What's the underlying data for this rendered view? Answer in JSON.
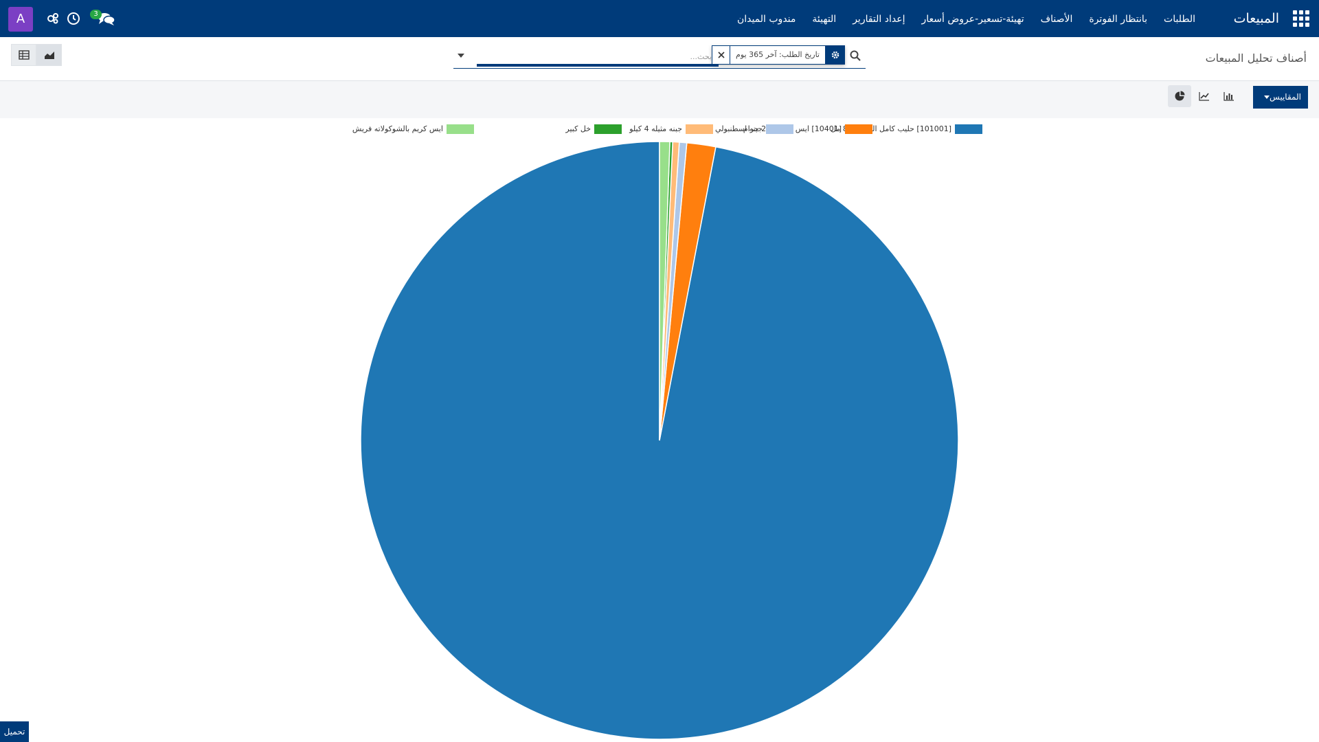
{
  "navbar": {
    "brand": "المبيعات",
    "menu": [
      "الطلبات",
      "بانتظار الفوترة",
      "الأصناف",
      "تهيئة-تسعير-عروض أسعار",
      "إعداد التقارير",
      "التهيئة",
      "مندوب الميدان"
    ],
    "avatar_letter": "A",
    "messages_count": "3",
    "colors": {
      "bar": "#003b7a",
      "avatar": "#7b3fc4",
      "badge": "#28a745"
    }
  },
  "control_panel": {
    "breadcrumb": "أصناف تحليل المبيعات",
    "facet_value": "تاريخ الطلب: آخر 365 يوم",
    "search_placeholder": "بحث..."
  },
  "graph_controls": {
    "measures_label": "المقاييس",
    "chart_types": [
      "pie-chart-icon",
      "line-chart-icon",
      "bar-chart-icon"
    ],
    "active_chart_type": "pie"
  },
  "download_label": "تحميل",
  "chart_data": {
    "type": "pie",
    "title": "",
    "legend_position": "top",
    "series": [
      {
        "name": "[101001] حليب كامل الدسم850 مل",
        "value": 96.5,
        "color": "#1f77b4"
      },
      {
        "name": "[10401] ايس كريم 200 جرام",
        "value": 1.55,
        "color": "#ff7f0e"
      },
      {
        "name": "جبنه اسطنبولي  4 كيلو",
        "value": 0.4,
        "color": "#aec7e8"
      },
      {
        "name": "جبنه مثيله 4 كيلو",
        "value": 0.35,
        "color": "#ffbb78"
      },
      {
        "name": "خل كبير",
        "value": 0.15,
        "color": "#2ca02c"
      },
      {
        "name": "ايس كريم بالشوكولاته فريش",
        "value": 0.55,
        "color": "#98df8a"
      }
    ]
  }
}
